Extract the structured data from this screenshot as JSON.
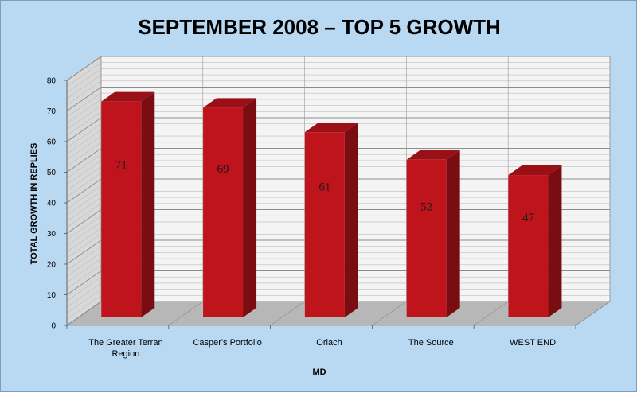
{
  "chart_data": {
    "type": "bar",
    "title": "SEPTEMBER 2008 – TOP 5 GROWTH",
    "xlabel": "MD",
    "ylabel": "TOTAL GROWTH IN REPLIES",
    "ylim": [
      0,
      80
    ],
    "yticks": [
      0,
      10,
      20,
      30,
      40,
      50,
      60,
      70,
      80
    ],
    "categories": [
      [
        "The Greater Terran",
        "Region"
      ],
      [
        "Casper's Portfolio"
      ],
      [
        "Orlach"
      ],
      [
        "The Source"
      ],
      [
        "WEST END"
      ]
    ],
    "values": [
      71,
      69,
      61,
      52,
      47
    ],
    "data_labels": [
      "71",
      "69",
      "61",
      "52",
      "47"
    ],
    "grid": true,
    "legend": "none",
    "colors": {
      "background": "#b9d9f3",
      "bar_front": "#c0141c",
      "bar_side": "#7a0d12",
      "bar_top": "#9a1016",
      "back_wall": "#f4f4f4",
      "side_wall": "#d8d8d8",
      "floor": "#b7b7b7",
      "grid": "#9a9a9a"
    }
  }
}
